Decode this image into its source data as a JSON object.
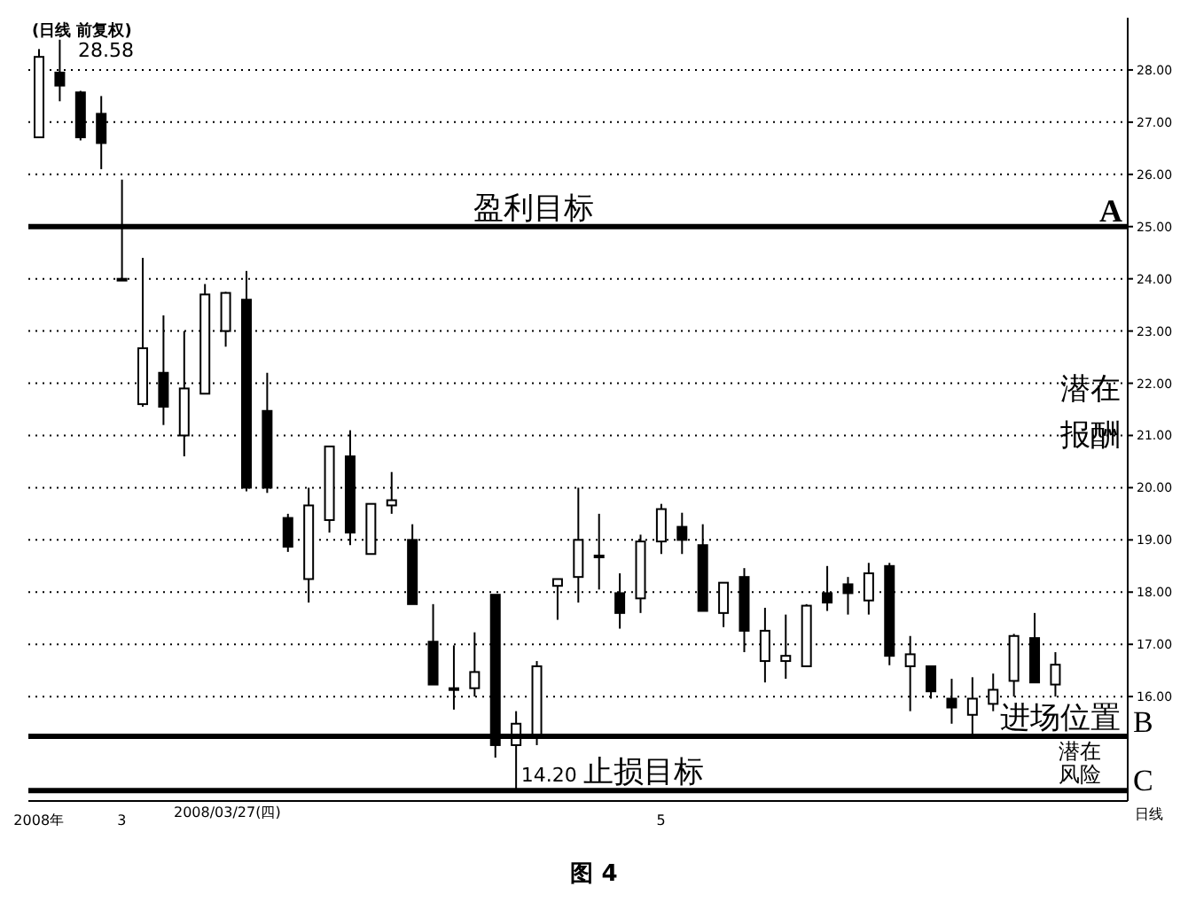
{
  "chart_data": {
    "type": "candlestick",
    "title": "(日线 前复权)",
    "categories": [
      "2008年",
      null,
      null,
      null,
      "3",
      null,
      null,
      null,
      null,
      null,
      null,
      null,
      null,
      null,
      null,
      null,
      null,
      null,
      null,
      null,
      null,
      null,
      null,
      null,
      null,
      null,
      null,
      null,
      null,
      null,
      "5",
      null,
      null,
      null,
      null,
      null,
      null,
      null,
      null,
      null,
      null,
      null,
      null,
      null,
      null,
      null,
      null,
      null,
      null,
      null,
      null,
      null,
      null
    ],
    "ohlc": [
      [
        26.71,
        28.4,
        26.7,
        28.25
      ],
      [
        27.95,
        28.58,
        27.4,
        27.7
      ],
      [
        27.57,
        27.6,
        26.65,
        26.71
      ],
      [
        27.16,
        27.5,
        26.1,
        26.6
      ],
      [
        24.0,
        25.9,
        24.0,
        24.0
      ],
      [
        21.6,
        24.4,
        21.55,
        22.67
      ],
      [
        22.2,
        23.3,
        21.2,
        21.55
      ],
      [
        21.0,
        23.0,
        20.6,
        21.9
      ],
      [
        21.8,
        23.9,
        21.8,
        23.7
      ],
      [
        23.0,
        23.75,
        22.7,
        23.73
      ],
      [
        23.6,
        24.15,
        19.93,
        20.0
      ],
      [
        21.47,
        22.2,
        19.9,
        20.0
      ],
      [
        19.42,
        19.5,
        18.77,
        18.87
      ],
      [
        18.25,
        20.0,
        17.8,
        19.66
      ],
      [
        19.38,
        20.79,
        19.14,
        20.79
      ],
      [
        20.6,
        21.1,
        18.9,
        19.14
      ],
      [
        18.73,
        19.69,
        18.73,
        19.69
      ],
      [
        19.66,
        20.3,
        19.5,
        19.76
      ],
      [
        19.0,
        19.3,
        17.77,
        17.77
      ],
      [
        17.05,
        17.77,
        16.23,
        16.23
      ],
      [
        16.16,
        16.98,
        15.75,
        16.16
      ],
      [
        16.16,
        17.23,
        16.0,
        16.47
      ],
      [
        17.95,
        17.95,
        14.83,
        15.07
      ],
      [
        15.07,
        15.72,
        14.2,
        15.48
      ],
      [
        15.27,
        16.68,
        15.07,
        16.58
      ],
      [
        18.12,
        18.25,
        17.47,
        18.25
      ],
      [
        18.29,
        20.0,
        17.8,
        19.0
      ],
      [
        18.7,
        19.5,
        18.05,
        18.7
      ],
      [
        17.98,
        18.36,
        17.3,
        17.6
      ],
      [
        17.88,
        19.1,
        17.6,
        18.97
      ],
      [
        18.97,
        19.69,
        18.73,
        19.59
      ],
      [
        19.25,
        19.52,
        18.73,
        19.0
      ],
      [
        18.9,
        19.3,
        17.64,
        17.64
      ],
      [
        17.6,
        18.18,
        17.33,
        18.18
      ],
      [
        18.29,
        18.46,
        16.85,
        17.26
      ],
      [
        16.68,
        17.7,
        16.27,
        17.26
      ],
      [
        16.68,
        17.57,
        16.34,
        16.78
      ],
      [
        16.58,
        17.77,
        16.58,
        17.74
      ],
      [
        17.98,
        18.5,
        17.64,
        17.8
      ],
      [
        18.15,
        18.29,
        17.57,
        17.98
      ],
      [
        17.84,
        18.56,
        17.57,
        18.36
      ],
      [
        18.5,
        18.56,
        16.6,
        16.78
      ],
      [
        16.58,
        17.16,
        15.72,
        16.81
      ],
      [
        16.58,
        16.58,
        15.96,
        16.1
      ],
      [
        15.96,
        16.34,
        15.48,
        15.79
      ],
      [
        15.65,
        16.37,
        15.24,
        15.96
      ],
      [
        15.86,
        16.44,
        15.72,
        16.13
      ],
      [
        16.3,
        17.2,
        16.0,
        17.16
      ],
      [
        17.12,
        17.6,
        16.27,
        16.27
      ],
      [
        16.23,
        16.85,
        16.0,
        16.61
      ],
      null,
      null,
      null
    ],
    "color": "#000000",
    "ylim": [
      14,
      29
    ],
    "yticks": [
      {
        "value": 16,
        "label": "16.00"
      },
      {
        "value": 17,
        "label": "17.00"
      },
      {
        "value": 18,
        "label": "18.00"
      },
      {
        "value": 19,
        "label": "19.00"
      },
      {
        "value": 20,
        "label": "20.00"
      },
      {
        "value": 21,
        "label": "21.00"
      },
      {
        "value": 22,
        "label": "22.00"
      },
      {
        "value": 23,
        "label": "23.00"
      },
      {
        "value": 24,
        "label": "24.00"
      },
      {
        "value": 25,
        "label": "25.00"
      },
      {
        "value": 26,
        "label": "26.00"
      },
      {
        "value": 27,
        "label": "27.00"
      },
      {
        "value": 28,
        "label": "28.00"
      }
    ],
    "grid": "y",
    "ref_lines": [
      {
        "axis": "y",
        "value": 25,
        "label": "盈利目标",
        "color": "#000000"
      },
      {
        "axis": "y",
        "value": 15.24,
        "label": "进场位置",
        "color": "#000000"
      },
      {
        "axis": "y",
        "value": 14.2,
        "label": "止损目标",
        "color": "#000000"
      }
    ],
    "annotations": [
      "28.58",
      {
        "text": "14.20",
        "y": 14.2
      },
      {
        "text": "A",
        "y": 25
      },
      "B",
      "C",
      "潜在报酬",
      "潜在风险",
      "日线",
      "图 4",
      "2008/03/27(四)"
    ]
  }
}
